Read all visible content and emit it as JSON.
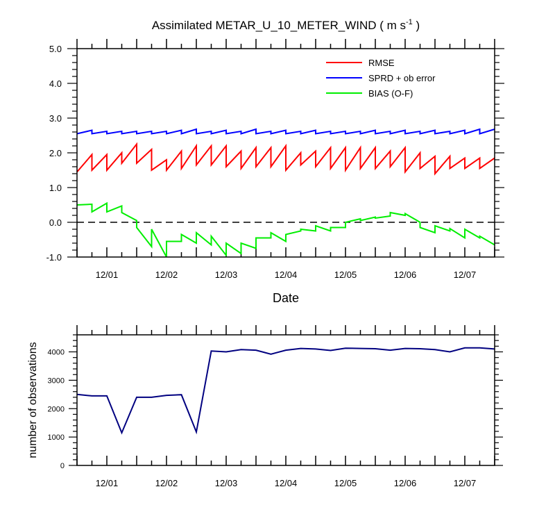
{
  "chart_data": [
    {
      "type": "line",
      "title": "Assimilated METAR_U_10_METER_WIND ( m s",
      "title_superscript": "-1",
      "title_suffix": " )",
      "xlabel": "Date",
      "ylabel": "",
      "x_tick_labels": [
        "12/01",
        "12/02",
        "12/03",
        "12/04",
        "12/05",
        "12/06",
        "12/07"
      ],
      "x_unit": "days since first cycle",
      "xlim": [
        0,
        7
      ],
      "ylim": [
        -1.0,
        5.0
      ],
      "y_tick_labels": [
        "-1.0",
        "0.0",
        "1.0",
        "2.0",
        "3.0",
        "4.0",
        "5.0"
      ],
      "zero_line": "dashed",
      "grid": false,
      "legend_position": "top-right",
      "series": [
        {
          "name": "RMSE",
          "color": "#ff0000",
          "x": [
            0,
            0.25,
            0.25,
            0.5,
            0.5,
            0.75,
            0.75,
            1.0,
            1.0,
            1.25,
            1.25,
            1.5,
            1.5,
            1.75,
            1.75,
            2.0,
            2.0,
            2.25,
            2.25,
            2.5,
            2.5,
            2.75,
            2.75,
            3.0,
            3.0,
            3.25,
            3.25,
            3.5,
            3.5,
            3.75,
            3.75,
            4.0,
            4.0,
            4.25,
            4.25,
            4.5,
            4.5,
            4.75,
            4.75,
            5.0,
            5.0,
            5.25,
            5.25,
            5.5,
            5.5,
            5.75,
            5.75,
            6.0,
            6.0,
            6.25,
            6.25,
            6.5,
            6.5,
            6.75,
            6.75,
            7.0
          ],
          "values": [
            1.45,
            1.95,
            1.5,
            1.95,
            1.5,
            2.0,
            1.7,
            2.25,
            1.7,
            2.1,
            1.5,
            1.8,
            1.5,
            2.05,
            1.55,
            2.2,
            1.65,
            2.2,
            1.65,
            2.2,
            1.6,
            2.05,
            1.55,
            2.15,
            1.6,
            2.15,
            1.6,
            2.2,
            1.5,
            2.0,
            1.65,
            2.05,
            1.6,
            2.15,
            1.55,
            2.15,
            1.5,
            2.15,
            1.55,
            2.15,
            1.55,
            2.05,
            1.6,
            2.15,
            1.45,
            2.0,
            1.55,
            1.9,
            1.4,
            1.9,
            1.55,
            1.85,
            1.55,
            1.85,
            1.55,
            1.85
          ]
        },
        {
          "name": "SPRD + ob error",
          "color": "#0000ff",
          "x": [
            0,
            0.25,
            0.25,
            0.5,
            0.5,
            0.75,
            0.75,
            1.0,
            1.0,
            1.25,
            1.25,
            1.5,
            1.5,
            1.75,
            1.75,
            2.0,
            2.0,
            2.25,
            2.25,
            2.5,
            2.5,
            2.75,
            2.75,
            3.0,
            3.0,
            3.25,
            3.25,
            3.5,
            3.5,
            3.75,
            3.75,
            4.0,
            4.0,
            4.25,
            4.25,
            4.5,
            4.5,
            4.75,
            4.75,
            5.0,
            5.0,
            5.25,
            5.25,
            5.5,
            5.5,
            5.75,
            5.75,
            6.0,
            6.0,
            6.25,
            6.25,
            6.5,
            6.5,
            6.75,
            6.75,
            7.0
          ],
          "values": [
            2.55,
            2.65,
            2.55,
            2.62,
            2.55,
            2.62,
            2.55,
            2.62,
            2.55,
            2.62,
            2.55,
            2.62,
            2.55,
            2.65,
            2.55,
            2.68,
            2.55,
            2.62,
            2.55,
            2.65,
            2.55,
            2.62,
            2.55,
            2.68,
            2.55,
            2.62,
            2.55,
            2.65,
            2.55,
            2.62,
            2.55,
            2.65,
            2.55,
            2.62,
            2.55,
            2.62,
            2.55,
            2.62,
            2.55,
            2.65,
            2.55,
            2.62,
            2.55,
            2.65,
            2.55,
            2.62,
            2.55,
            2.65,
            2.55,
            2.62,
            2.55,
            2.65,
            2.55,
            2.68,
            2.55,
            2.68
          ]
        },
        {
          "name": "BIAS (O-F)",
          "color": "#00ee00",
          "x": [
            0,
            0.25,
            0.25,
            0.5,
            0.5,
            0.75,
            0.75,
            1.0,
            1.0,
            1.25,
            1.25,
            1.5,
            1.5,
            1.75,
            1.75,
            2.0,
            2.0,
            2.25,
            2.25,
            2.5,
            2.5,
            2.75,
            2.75,
            3.0,
            3.0,
            3.25,
            3.25,
            3.5,
            3.5,
            3.75,
            3.75,
            4.0,
            4.0,
            4.25,
            4.25,
            4.5,
            4.5,
            4.75,
            4.75,
            5.0,
            5.0,
            5.25,
            5.25,
            5.5,
            5.5,
            5.75,
            5.75,
            6.0,
            6.0,
            6.25,
            6.25,
            6.5,
            6.5,
            6.75,
            6.75,
            7.0
          ],
          "values": [
            0.5,
            0.52,
            0.3,
            0.55,
            0.3,
            0.47,
            0.28,
            0.05,
            -0.15,
            -0.7,
            -0.2,
            -1.0,
            -0.55,
            -0.55,
            -0.35,
            -0.6,
            -0.3,
            -0.65,
            -0.4,
            -0.95,
            -0.6,
            -0.9,
            -0.6,
            -0.75,
            -0.45,
            -0.45,
            -0.3,
            -0.55,
            -0.35,
            -0.25,
            -0.2,
            -0.25,
            -0.1,
            -0.25,
            -0.15,
            -0.15,
            0.0,
            0.1,
            0.05,
            0.15,
            0.12,
            0.18,
            0.28,
            0.2,
            0.25,
            0.0,
            -0.15,
            -0.3,
            -0.1,
            -0.25,
            -0.18,
            -0.45,
            -0.2,
            -0.45,
            -0.4,
            -0.65
          ]
        }
      ]
    },
    {
      "type": "line",
      "title": "",
      "xlabel": "",
      "ylabel": "number of observations",
      "x_tick_labels": [
        "12/01",
        "12/02",
        "12/03",
        "12/04",
        "12/05",
        "12/06",
        "12/07"
      ],
      "x_unit": "days since first cycle",
      "xlim": [
        0,
        7
      ],
      "ylim": [
        0,
        4600
      ],
      "y_ticks": [
        0,
        1000,
        2000,
        3000,
        4000
      ],
      "y_tick_labels": [
        "0",
        "1000",
        "2000",
        "3000",
        "4000"
      ],
      "grid": false,
      "series": [
        {
          "name": "",
          "color": "#000080",
          "x": [
            0,
            0.25,
            0.5,
            0.75,
            1.0,
            1.25,
            1.5,
            1.75,
            2.0,
            2.25,
            2.5,
            2.75,
            3.0,
            3.25,
            3.5,
            3.75,
            4.0,
            4.25,
            4.5,
            4.75,
            5.0,
            5.25,
            5.5,
            5.75,
            6.0,
            6.25,
            6.5,
            6.75,
            7.0
          ],
          "values": [
            2500,
            2450,
            2450,
            1150,
            2400,
            2400,
            2470,
            2490,
            1180,
            4030,
            4000,
            4080,
            4060,
            3920,
            4060,
            4120,
            4100,
            4050,
            4130,
            4120,
            4110,
            4060,
            4120,
            4110,
            4080,
            4000,
            4140,
            4140,
            4100
          ]
        }
      ]
    }
  ]
}
